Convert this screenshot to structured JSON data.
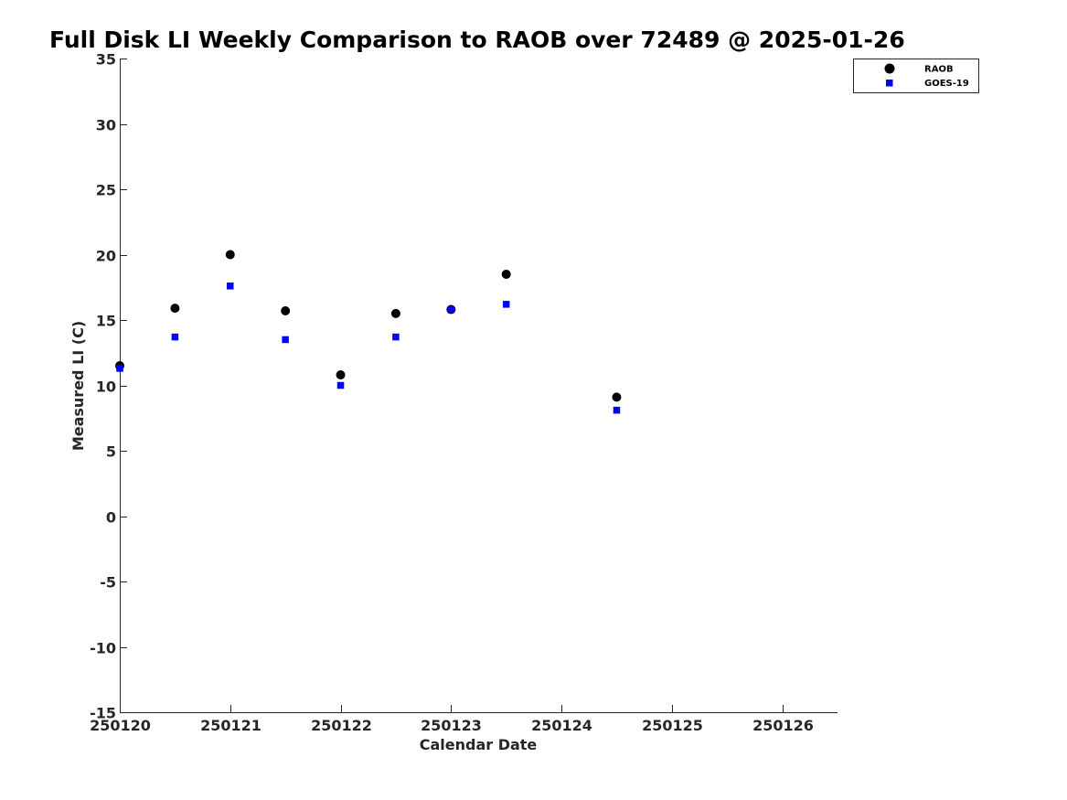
{
  "chart_data": {
    "type": "scatter",
    "title": "Full Disk LI Weekly Comparison to RAOB over 72489 @ 2025-01-26",
    "xlabel": "Calendar Date",
    "ylabel": "Measured LI (C)",
    "xlim": [
      0,
      6.5
    ],
    "ylim": [
      -15,
      35
    ],
    "x_tick_values": [
      0,
      1,
      2,
      3,
      4,
      5,
      6
    ],
    "x_tick_labels": [
      "250120",
      "250121",
      "250122",
      "250123",
      "250124",
      "250125",
      "250126"
    ],
    "y_tick_values": [
      -15,
      -10,
      -5,
      0,
      5,
      10,
      15,
      20,
      25,
      30,
      35
    ],
    "y_tick_labels": [
      "-15",
      "-10",
      "-5",
      "0",
      "5",
      "10",
      "15",
      "20",
      "25",
      "30",
      "35"
    ],
    "grid": false,
    "legend_position": "top-right",
    "series": [
      {
        "name": "RAOB",
        "marker": "circle",
        "color": "#000000",
        "x": [
          0,
          0.5,
          1,
          1.5,
          2,
          2.5,
          3,
          3.5,
          4.5
        ],
        "y": [
          11.5,
          15.9,
          20.0,
          15.7,
          10.8,
          15.5,
          15.8,
          18.5,
          9.1
        ]
      },
      {
        "name": "GOES-19",
        "marker": "square",
        "color": "#0000ff",
        "x": [
          0,
          0.5,
          1,
          1.5,
          2,
          2.5,
          3,
          3.5,
          4.5
        ],
        "y": [
          11.3,
          13.7,
          17.6,
          13.5,
          10.0,
          13.7,
          15.8,
          16.2,
          8.1
        ]
      }
    ]
  }
}
